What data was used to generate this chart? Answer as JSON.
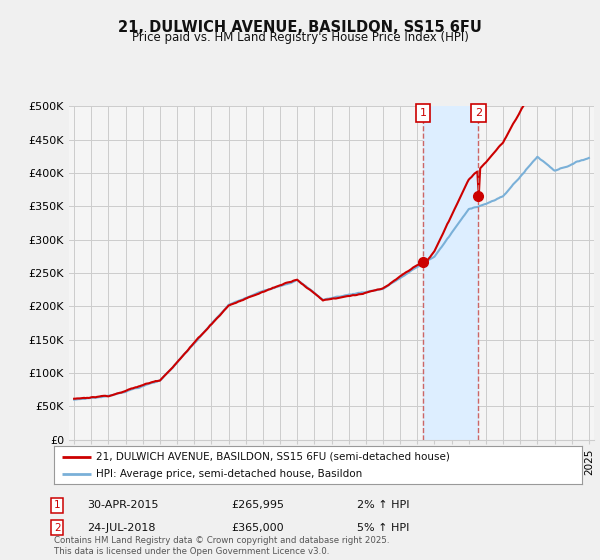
{
  "title": "21, DULWICH AVENUE, BASILDON, SS15 6FU",
  "subtitle": "Price paid vs. HM Land Registry's House Price Index (HPI)",
  "ylim": [
    0,
    500000
  ],
  "yticks": [
    0,
    50000,
    100000,
    150000,
    200000,
    250000,
    300000,
    350000,
    400000,
    450000,
    500000
  ],
  "ytick_labels": [
    "£0",
    "£50K",
    "£100K",
    "£150K",
    "£200K",
    "£250K",
    "£300K",
    "£350K",
    "£400K",
    "£450K",
    "£500K"
  ],
  "background_color": "#f0f0f0",
  "plot_bg_color": "#f5f5f5",
  "grid_color": "#cccccc",
  "hpi_line_color": "#7ab0d8",
  "shade_color": "#ddeeff",
  "price_color": "#cc0000",
  "sale1_year": 2015.33,
  "sale1_price": 265995,
  "sale2_year": 2018.55,
  "sale2_price": 365000,
  "sale1_date": "30-APR-2015",
  "sale1_hpi_txt": "2% ↑ HPI",
  "sale2_date": "24-JUL-2018",
  "sale2_hpi_txt": "5% ↑ HPI",
  "legend_label1": "21, DULWICH AVENUE, BASILDON, SS15 6FU (semi-detached house)",
  "legend_label2": "HPI: Average price, semi-detached house, Basildon",
  "footer": "Contains HM Land Registry data © Crown copyright and database right 2025.\nThis data is licensed under the Open Government Licence v3.0.",
  "xmin": 1994.7,
  "xmax": 2025.3
}
